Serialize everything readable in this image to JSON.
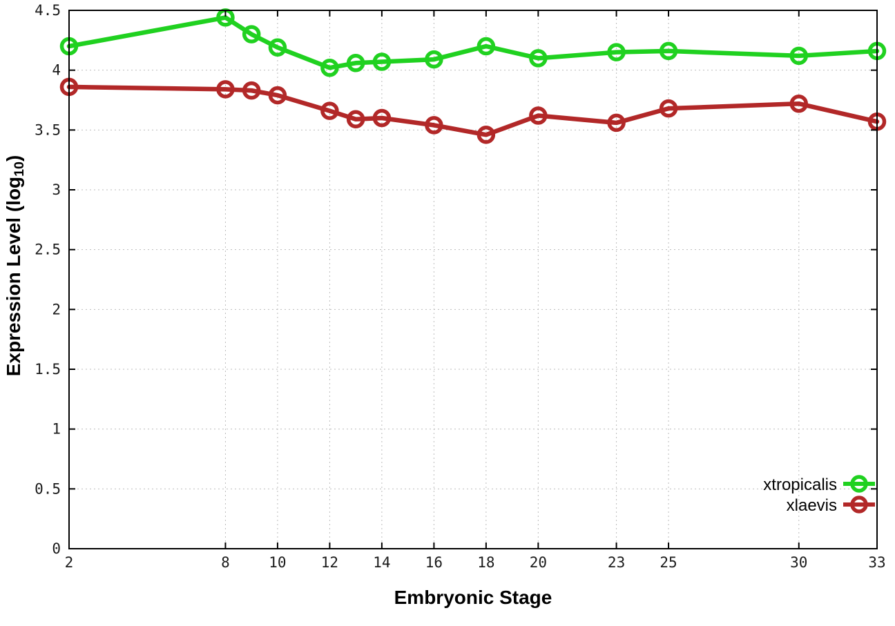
{
  "chart_data": {
    "type": "line",
    "title": "",
    "xlabel": "Embryonic Stage",
    "ylabel": "Expression Level (log10)",
    "ylabel_parts": {
      "prefix": "Expression Level (log",
      "sub": "10",
      "suffix": ")"
    },
    "x": [
      2,
      8,
      9,
      10,
      12,
      13,
      14,
      16,
      18,
      20,
      23,
      25,
      30,
      33
    ],
    "x_tick_values": [
      2,
      8,
      10,
      12,
      14,
      16,
      18,
      20,
      23,
      25,
      30,
      33
    ],
    "x_tick_labels": [
      "2",
      "8",
      "10",
      "12",
      "14",
      "16",
      "18",
      "20",
      "23",
      "25",
      "30",
      "33"
    ],
    "xlim": [
      2,
      33
    ],
    "y_tick_values": [
      0,
      0.5,
      1,
      1.5,
      2,
      2.5,
      3,
      3.5,
      4,
      4.5
    ],
    "y_tick_labels": [
      "0",
      "0.5",
      "1",
      "1.5",
      "2",
      "2.5",
      "3",
      "3.5",
      "4",
      "4.5"
    ],
    "ylim": [
      0,
      4.5
    ],
    "grid": true,
    "grid_color": "#bbbbbb",
    "axis_color": "#000000",
    "background_color": "#ffffff",
    "marker": "open-circle",
    "legend_position": "inside-bottom-right",
    "series": [
      {
        "name": "xtropicalis",
        "color": "#20d120",
        "values": [
          4.2,
          4.44,
          4.3,
          4.19,
          4.02,
          4.06,
          4.07,
          4.09,
          4.2,
          4.1,
          4.15,
          4.16,
          4.12,
          4.16
        ]
      },
      {
        "name": "xlaevis",
        "color": "#b22828",
        "values": [
          3.86,
          3.84,
          3.83,
          3.79,
          3.66,
          3.59,
          3.6,
          3.54,
          3.46,
          3.62,
          3.56,
          3.68,
          3.72,
          3.57
        ]
      }
    ]
  }
}
